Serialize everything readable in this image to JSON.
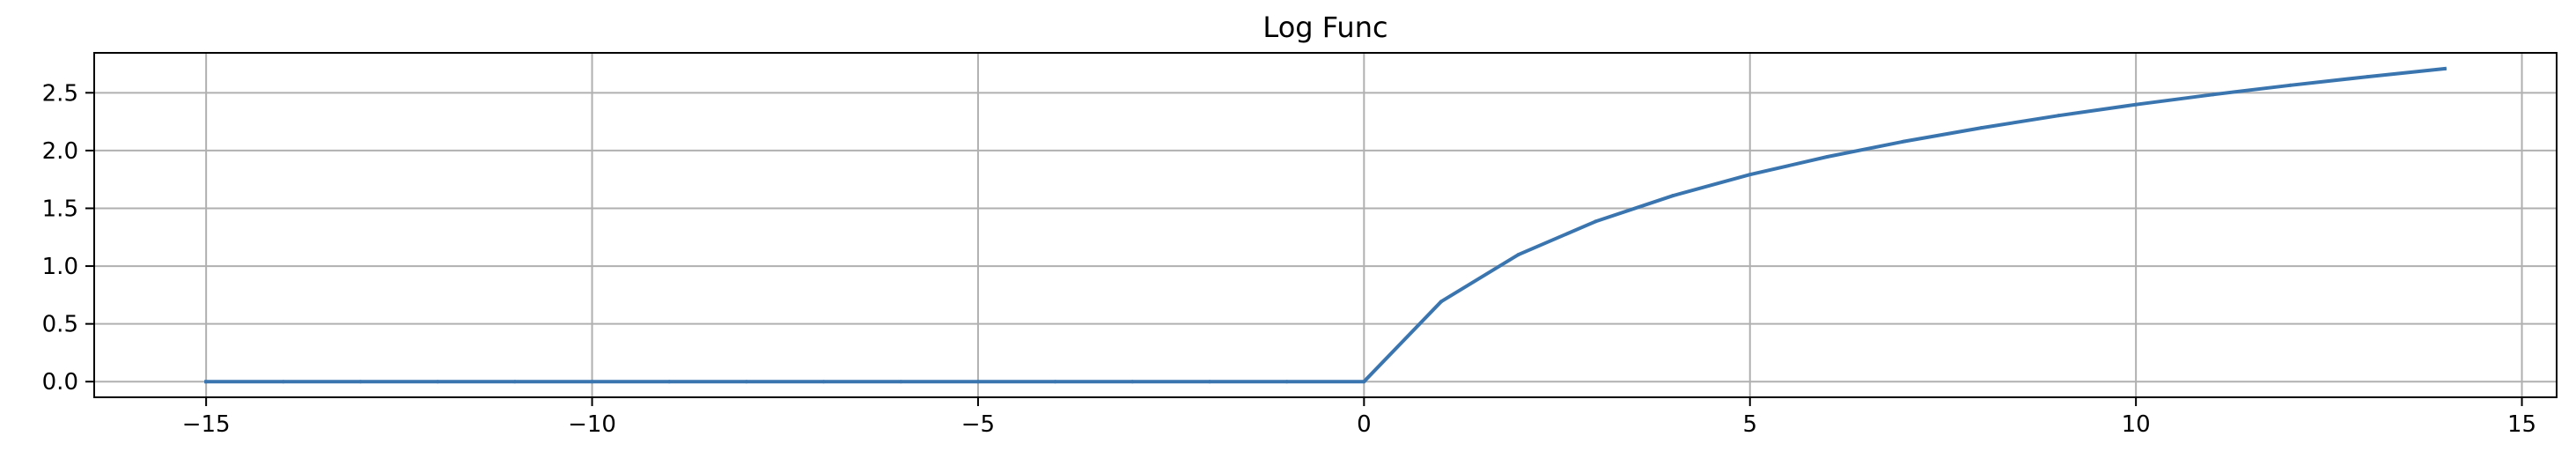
{
  "chart_data": {
    "type": "line",
    "title": "Log Func",
    "xlabel": "",
    "ylabel": "",
    "xlim": [
      -16.45,
      15.45
    ],
    "ylim": [
      -0.1355,
      2.8455
    ],
    "xticks": [
      -15,
      -10,
      -5,
      0,
      5,
      10,
      15
    ],
    "yticks": [
      0.0,
      0.5,
      1.0,
      1.5,
      2.0,
      2.5
    ],
    "xtick_labels": [
      "−15",
      "−10",
      "−5",
      "0",
      "5",
      "10",
      "15"
    ],
    "ytick_labels": [
      "0.0",
      "0.5",
      "1.0",
      "1.5",
      "2.0",
      "2.5"
    ],
    "grid": true,
    "legend": "none",
    "series": [
      {
        "color": "#3b75af",
        "x": [
          -15,
          -14,
          -13,
          -12,
          -11,
          -10,
          -9,
          -8,
          -7,
          -6,
          -5,
          -4,
          -3,
          -2,
          -1,
          0,
          1,
          2,
          3,
          4,
          5,
          6,
          7,
          8,
          9,
          10,
          11,
          12,
          13,
          14
        ],
        "y": [
          0,
          0,
          0,
          0,
          0,
          0,
          0,
          0,
          0,
          0,
          0,
          0,
          0,
          0,
          0,
          0,
          0.693,
          1.099,
          1.386,
          1.609,
          1.792,
          1.946,
          2.079,
          2.197,
          2.303,
          2.398,
          2.485,
          2.565,
          2.639,
          2.708
        ]
      }
    ]
  }
}
